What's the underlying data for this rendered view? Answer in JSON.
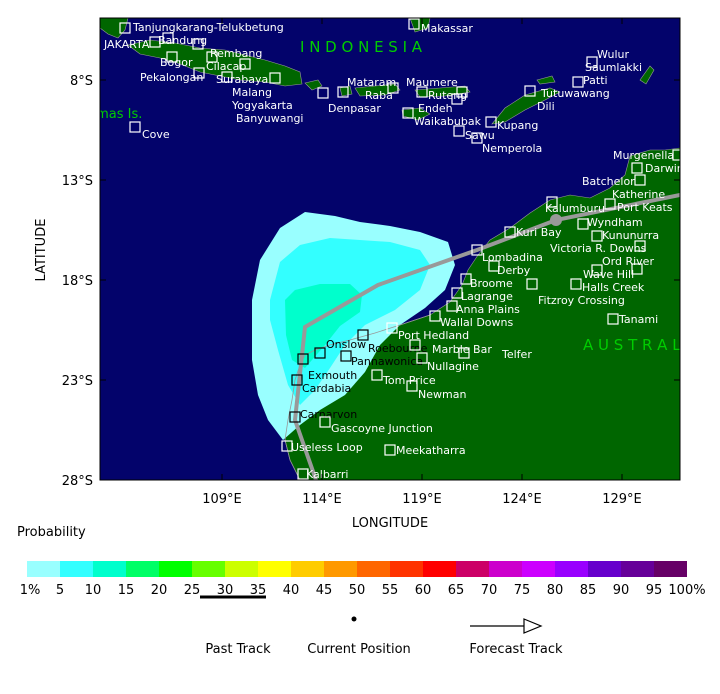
{
  "map": {
    "xlabel": "LONGITUDE",
    "ylabel": "LATITUDE",
    "lon_ticks": [
      "109°E",
      "114°E",
      "119°E",
      "124°E",
      "129°E"
    ],
    "lat_ticks": [
      "8°S",
      "13°S",
      "18°S",
      "23°S",
      "28°S"
    ],
    "region_labels": [
      "I N D O N E S I A",
      "A U S T R A L I A",
      "Christmas Is."
    ],
    "colors": {
      "ocean": "#03036b",
      "land": "#006600",
      "track": "#999999",
      "region_label": "#00cc00"
    },
    "towns": [
      "Tanjungkarang-Telukbetung",
      "JAKARTA",
      "Bandung",
      "Rembang",
      "Bogor",
      "Cilacap",
      "Pekalongan",
      "Surabaya",
      "Malang",
      "Yogyakarta",
      "Banyuwangi",
      "Denpasar",
      "Mataram",
      "Raba",
      "Maumere",
      "Ruteng",
      "Endeh",
      "Waikabubak",
      "Sawu",
      "Kupang",
      "Nemperola",
      "Makassar",
      "Tutuwawang",
      "Dili",
      "Patti",
      "Wulur",
      "Saumlakki",
      "Cove",
      "Murgenella",
      "Darwin",
      "Batchelor",
      "Katherine",
      "Port Keats",
      "Kalumburu",
      "Wyndham",
      "Kununurra",
      "Victoria R. Downs",
      "Kuri Bay",
      "Lombadina",
      "Derby",
      "Broome",
      "Lagrange",
      "Anna Plains",
      "Wallal Downs",
      "Port Hedland",
      "Roebourne",
      "Onslow",
      "Pannawonica",
      "Marble Bar",
      "Telfer",
      "Nullagine",
      "Exmouth",
      "Cardabia",
      "Tom Price",
      "Newman",
      "Carnarvon",
      "Gascoyne Junction",
      "Useless Loop",
      "Meekatharra",
      "Kalbarri",
      "Ord River",
      "Wave Hill",
      "Halls Creek",
      "Fitzroy Crossing",
      "Tanami"
    ]
  },
  "legend": {
    "title": "Probability",
    "bins": [
      {
        "label": "1%",
        "color": "#99ffff"
      },
      {
        "label": "5",
        "color": "#33ffff"
      },
      {
        "label": "10",
        "color": "#00ffcc"
      },
      {
        "label": "15",
        "color": "#00ff66"
      },
      {
        "label": "20",
        "color": "#00ff00"
      },
      {
        "label": "25",
        "color": "#66ff00"
      },
      {
        "label": "30",
        "color": "#ccff00"
      },
      {
        "label": "35",
        "color": "#ffff00"
      },
      {
        "label": "40",
        "color": "#ffcc00"
      },
      {
        "label": "45",
        "color": "#ff9900"
      },
      {
        "label": "50",
        "color": "#ff6600"
      },
      {
        "label": "55",
        "color": "#ff3300"
      },
      {
        "label": "60",
        "color": "#ff0000"
      },
      {
        "label": "65",
        "color": "#cc0066"
      },
      {
        "label": "70",
        "color": "#cc00cc"
      },
      {
        "label": "75",
        "color": "#cc00ff"
      },
      {
        "label": "80",
        "color": "#9900ff"
      },
      {
        "label": "85",
        "color": "#6600cc"
      },
      {
        "label": "90",
        "color": "#660099"
      },
      {
        "label": "95",
        "color": "#660066"
      }
    ],
    "end_label": "100%",
    "past_track": "Past Track",
    "current_position": "Current Position",
    "forecast_track": "Forecast Track"
  }
}
